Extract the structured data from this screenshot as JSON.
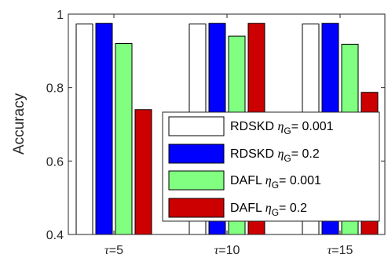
{
  "chart_data": {
    "type": "bar",
    "title": "",
    "xlabel": "",
    "ylabel": "Accuracy",
    "ylim": [
      0.4,
      1.0
    ],
    "yticks": [
      {
        "value": 0.4,
        "label": "0.4"
      },
      {
        "value": 0.6,
        "label": "0.6"
      },
      {
        "value": 0.8,
        "label": "0.8"
      },
      {
        "value": 1.0,
        "label": "1"
      }
    ],
    "grid": false,
    "legend_position": "bottom-right",
    "categories": [
      {
        "symbol": "τ",
        "rest": "=5"
      },
      {
        "symbol": "τ",
        "rest": "=10"
      },
      {
        "symbol": "τ",
        "rest": "=15"
      }
    ],
    "series": [
      {
        "name": "RDSKD",
        "eta": "η",
        "sub": "G",
        "value_text": "= 0.001",
        "color": "#ffffff",
        "values": [
          0.973,
          0.973,
          0.973
        ]
      },
      {
        "name": "RDSKD",
        "eta": "η",
        "sub": "G",
        "value_text": "= 0.2",
        "color": "#0000ff",
        "values": [
          0.975,
          0.975,
          0.975
        ]
      },
      {
        "name": "DAFL",
        "eta": "η",
        "sub": "G",
        "value_text": "= 0.001",
        "color": "#80ff80",
        "values": [
          0.92,
          0.94,
          0.918
        ]
      },
      {
        "name": "DAFL",
        "eta": "η",
        "sub": "G",
        "value_text": "= 0.2",
        "color": "#cc0000",
        "values": [
          0.74,
          0.975,
          0.787
        ]
      }
    ]
  }
}
